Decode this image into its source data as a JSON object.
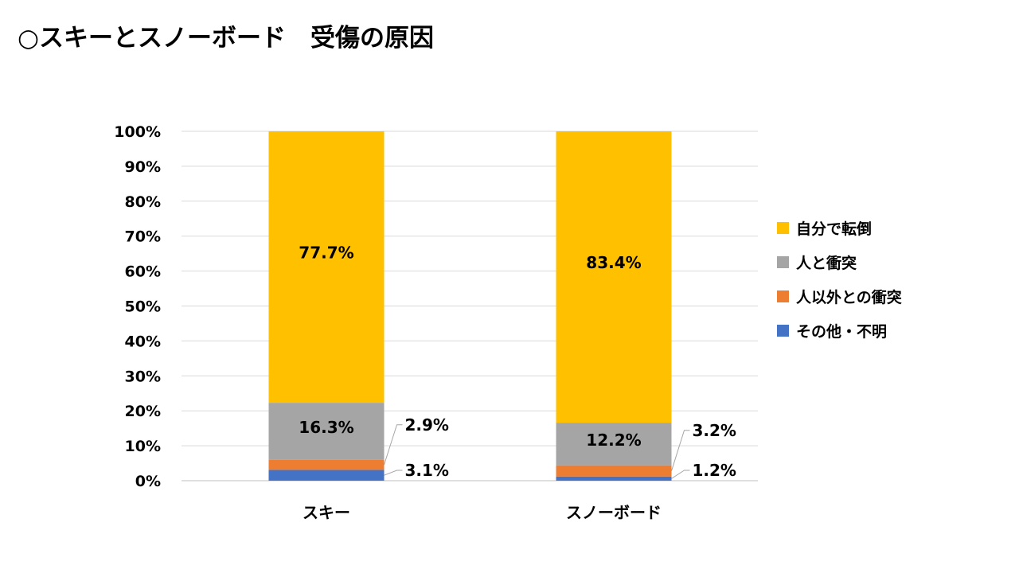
{
  "page": {
    "title": "○スキーとスノーボード　受傷の原因"
  },
  "chart_data": {
    "type": "bar",
    "stacked": true,
    "title": "",
    "xlabel": "",
    "ylabel": "",
    "ylim": [
      0,
      100
    ],
    "y_ticks": [
      "0%",
      "10%",
      "20%",
      "30%",
      "40%",
      "50%",
      "60%",
      "70%",
      "80%",
      "90%",
      "100%"
    ],
    "grid": true,
    "legend_position": "right",
    "categories": [
      "スキー",
      "スノーボード"
    ],
    "series": [
      {
        "name": "その他・不明",
        "color": "#4472C4",
        "values": [
          3.1,
          1.2
        ],
        "labels": [
          "3.1%",
          "1.2%"
        ]
      },
      {
        "name": "人以外との衝突",
        "color": "#ED7D31",
        "values": [
          2.9,
          3.2
        ],
        "labels": [
          "2.9%",
          "3.2%"
        ]
      },
      {
        "name": "人と衝突",
        "color": "#A5A5A5",
        "values": [
          16.3,
          12.2
        ],
        "labels": [
          "16.3%",
          "12.2%"
        ]
      },
      {
        "name": "自分で転倒",
        "color": "#FFC000",
        "values": [
          77.7,
          83.4
        ],
        "labels": [
          "77.7%",
          "83.4%"
        ]
      }
    ],
    "legend_order": [
      "自分で転倒",
      "人と衝突",
      "人以外との衝突",
      "その他・不明"
    ]
  }
}
